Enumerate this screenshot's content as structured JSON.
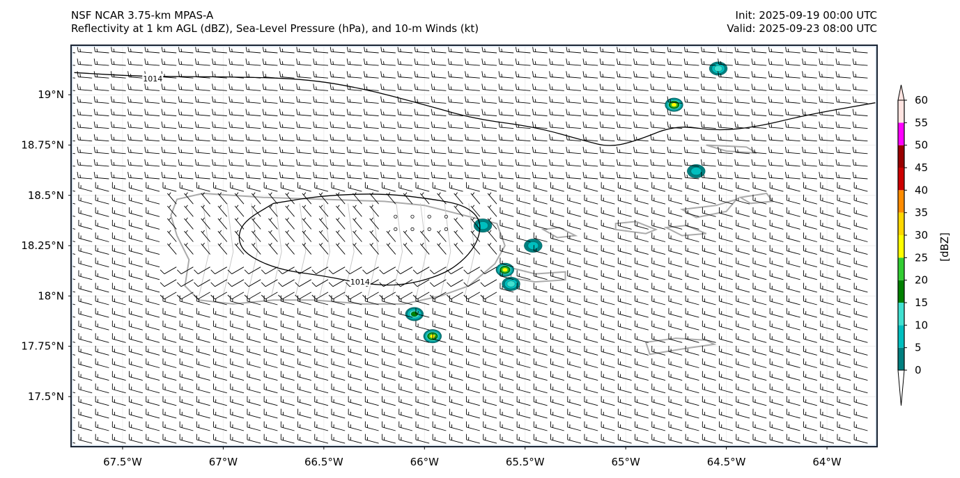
{
  "header": {
    "model_title": "NSF NCAR 3.75-km MPAS-A",
    "fields_title": "Reflectivity at 1 km AGL (dBZ), Sea-Level Pressure (hPa), and 10-m Winds (kt)",
    "init": "Init: 2025-09-19 00:00 UTC",
    "valid": "Valid: 2025-09-23 08:00 UTC"
  },
  "chart_data": {
    "type": "map",
    "title": "NSF NCAR 3.75-km MPAS-A",
    "subtitle": "Reflectivity at 1 km AGL (dBZ), Sea-Level Pressure (hPa), and 10-m Winds (kt)",
    "lon_range": [
      -67.756,
      -63.751
    ],
    "lat_range": [
      17.251,
      19.246
    ],
    "x_ticks": [
      {
        "value": -67.5,
        "label": "67.5°W"
      },
      {
        "value": -67.0,
        "label": "67°W"
      },
      {
        "value": -66.5,
        "label": "66.5°W"
      },
      {
        "value": -66.0,
        "label": "66°W"
      },
      {
        "value": -65.5,
        "label": "65.5°W"
      },
      {
        "value": -65.0,
        "label": "65°W"
      },
      {
        "value": -64.5,
        "label": "64.5°W"
      },
      {
        "value": -64.0,
        "label": "64°W"
      }
    ],
    "y_ticks": [
      {
        "value": 19.0,
        "label": "19°N"
      },
      {
        "value": 18.75,
        "label": "18.75°N"
      },
      {
        "value": 18.5,
        "label": "18.5°N"
      },
      {
        "value": 18.25,
        "label": "18.25°N"
      },
      {
        "value": 18.0,
        "label": "18°N"
      },
      {
        "value": 17.75,
        "label": "17.75°N"
      },
      {
        "value": 17.5,
        "label": "17.5°N"
      }
    ],
    "colorbar": {
      "label": "[dBZ]",
      "levels": [
        0,
        5,
        10,
        15,
        20,
        25,
        30,
        35,
        40,
        45,
        50,
        55,
        60
      ],
      "tick_labels": [
        "0",
        "5",
        "10",
        "15",
        "20",
        "25",
        "30",
        "35",
        "40",
        "45",
        "50",
        "55",
        "60"
      ],
      "colors": [
        "#007f7f",
        "#00bfbf",
        "#40e0d0",
        "#008000",
        "#32cd32",
        "#ffff00",
        "#ffd700",
        "#ff8c00",
        "#cc0000",
        "#990000",
        "#ff00ff",
        "#ffe4e1"
      ],
      "extend": "both",
      "under_color": "#ffffff",
      "over_color": "#ffe4e1"
    },
    "slp_contours": [
      {
        "level": 1014,
        "label": "1014",
        "points": [
          [
            -67.74,
            19.11
          ],
          [
            -67.4,
            19.09
          ],
          [
            -67.0,
            19.09
          ],
          [
            -66.6,
            19.08
          ],
          [
            -66.3,
            19.03
          ],
          [
            -66.0,
            18.95
          ],
          [
            -65.75,
            18.88
          ],
          [
            -65.45,
            18.84
          ],
          [
            -65.2,
            18.77
          ],
          [
            -65.08,
            18.74
          ],
          [
            -64.95,
            18.77
          ],
          [
            -64.75,
            18.85
          ],
          [
            -64.55,
            18.82
          ],
          [
            -64.35,
            18.84
          ],
          [
            -64.1,
            18.9
          ],
          [
            -63.76,
            18.96
          ]
        ],
        "label_at": [
          -67.35,
          19.08
        ]
      },
      {
        "level": 1014,
        "label": "1014",
        "closed": true,
        "points": [
          [
            -66.75,
            18.46
          ],
          [
            -66.5,
            18.5
          ],
          [
            -66.2,
            18.51
          ],
          [
            -65.95,
            18.48
          ],
          [
            -65.8,
            18.45
          ],
          [
            -65.72,
            18.38
          ],
          [
            -65.73,
            18.28
          ],
          [
            -65.8,
            18.18
          ],
          [
            -65.92,
            18.1
          ],
          [
            -66.12,
            18.05
          ],
          [
            -66.3,
            18.06
          ],
          [
            -66.5,
            18.1
          ],
          [
            -66.72,
            18.13
          ],
          [
            -66.88,
            18.2
          ],
          [
            -66.93,
            18.28
          ],
          [
            -66.9,
            18.37
          ],
          [
            -66.75,
            18.46
          ]
        ],
        "label_at": [
          -66.32,
          18.07
        ]
      }
    ],
    "reflectivity_cells": [
      {
        "lon": -64.54,
        "lat": 19.13,
        "max_dbz": 15
      },
      {
        "lon": -64.76,
        "lat": 18.95,
        "max_dbz": 30
      },
      {
        "lon": -64.65,
        "lat": 18.62,
        "max_dbz": 10
      },
      {
        "lon": -65.71,
        "lat": 18.35,
        "max_dbz": 10
      },
      {
        "lon": -65.46,
        "lat": 18.25,
        "max_dbz": 10
      },
      {
        "lon": -65.6,
        "lat": 18.13,
        "max_dbz": 30
      },
      {
        "lon": -65.57,
        "lat": 18.06,
        "max_dbz": 15
      },
      {
        "lon": -66.05,
        "lat": 17.91,
        "max_dbz": 20
      },
      {
        "lon": -65.96,
        "lat": 17.8,
        "max_dbz": 30
      }
    ],
    "wind_barbs": {
      "units": "kt",
      "regimes": [
        {
          "region": "open ocean north",
          "direction_deg": 95,
          "speed_kt": 15
        },
        {
          "region": "open ocean south",
          "direction_deg": 105,
          "speed_kt": 15
        },
        {
          "region": "southwest coast of Puerto Rico",
          "direction_deg": 240,
          "speed_kt": 10
        },
        {
          "region": "interior Puerto Rico",
          "direction_deg": 330,
          "speed_kt": 5
        },
        {
          "region": "calm points",
          "direction_deg": 0,
          "speed_kt": 0
        }
      ]
    }
  }
}
